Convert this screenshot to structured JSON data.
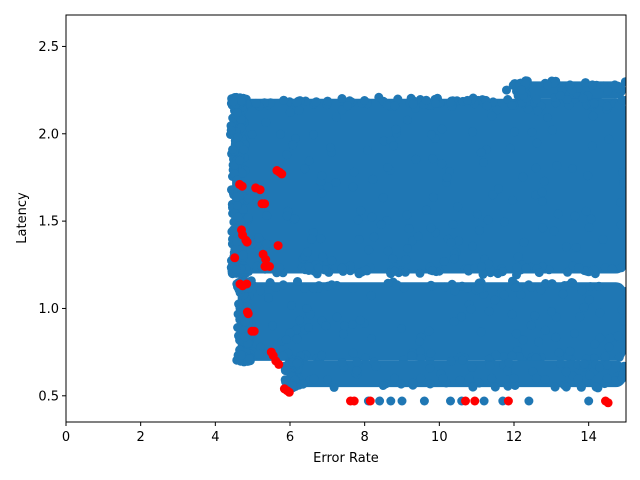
{
  "chart_data": {
    "type": "scatter",
    "title": "",
    "xlabel": "Error Rate",
    "ylabel": "Latency",
    "xlim": [
      0,
      15
    ],
    "ylim": [
      0.35,
      2.68
    ],
    "xticks": [
      "0",
      "2",
      "4",
      "6",
      "8",
      "10",
      "12",
      "14"
    ],
    "yticks": [
      "0.5",
      "1.0",
      "1.5",
      "2.0",
      "2.5"
    ],
    "grid": false,
    "legend": "none",
    "colors": {
      "normal": "#1f77b4",
      "anomaly": "#ff0000"
    },
    "series": [
      {
        "role": "normal",
        "bands": [
          {
            "x": [
              4.45,
              15.0
            ],
            "y": [
              1.2,
              2.2
            ]
          },
          {
            "x": [
              4.6,
              15.0
            ],
            "y": [
              0.7,
              1.15
            ]
          },
          {
            "x": [
              5.9,
              15.0
            ],
            "y": [
              0.55,
              0.7
            ]
          },
          {
            "x": [
              12.0,
              15.0
            ],
            "y": [
              2.2,
              2.3
            ]
          }
        ],
        "sparse": [
          [
            8.1,
            0.47
          ],
          [
            8.4,
            0.47
          ],
          [
            8.7,
            0.47
          ],
          [
            9.0,
            0.47
          ],
          [
            9.6,
            0.47
          ],
          [
            10.3,
            0.47
          ],
          [
            10.6,
            0.47
          ],
          [
            11.2,
            0.47
          ],
          [
            11.7,
            0.47
          ],
          [
            12.4,
            0.47
          ],
          [
            13.1,
            0.55
          ],
          [
            13.4,
            0.55
          ],
          [
            13.8,
            0.55
          ],
          [
            14.2,
            0.55
          ],
          [
            14.5,
            0.6
          ],
          [
            8.8,
            0.6
          ],
          [
            9.5,
            0.6
          ],
          [
            10.1,
            0.6
          ],
          [
            10.8,
            0.6
          ],
          [
            11.4,
            0.6
          ],
          [
            12.0,
            0.6
          ],
          [
            12.6,
            0.6
          ],
          [
            14.0,
            0.47
          ],
          [
            11.5,
            0.55
          ],
          [
            10.9,
            0.55
          ],
          [
            12.9,
            2.28
          ],
          [
            13.5,
            2.28
          ],
          [
            14.1,
            2.28
          ],
          [
            14.7,
            2.28
          ],
          [
            12.2,
            2.25
          ],
          [
            11.8,
            2.25
          ],
          [
            14.9,
            0.6
          ]
        ]
      },
      {
        "role": "anomaly",
        "points": [
          [
            4.65,
            1.71
          ],
          [
            4.72,
            1.7
          ],
          [
            5.08,
            1.69
          ],
          [
            5.2,
            1.68
          ],
          [
            5.25,
            1.6
          ],
          [
            5.32,
            1.6
          ],
          [
            5.65,
            1.79
          ],
          [
            5.72,
            1.78
          ],
          [
            5.78,
            1.77
          ],
          [
            4.7,
            1.45
          ],
          [
            4.73,
            1.42
          ],
          [
            4.82,
            1.39
          ],
          [
            4.85,
            1.38
          ],
          [
            4.52,
            1.29
          ],
          [
            5.28,
            1.31
          ],
          [
            5.35,
            1.28
          ],
          [
            5.33,
            1.24
          ],
          [
            5.45,
            1.24
          ],
          [
            5.68,
            1.36
          ],
          [
            4.66,
            1.14
          ],
          [
            4.73,
            1.13
          ],
          [
            4.84,
            1.14
          ],
          [
            4.86,
            0.98
          ],
          [
            4.88,
            0.97
          ],
          [
            4.98,
            0.87
          ],
          [
            5.04,
            0.87
          ],
          [
            5.5,
            0.75
          ],
          [
            5.55,
            0.73
          ],
          [
            5.62,
            0.7
          ],
          [
            5.7,
            0.68
          ],
          [
            5.85,
            0.54
          ],
          [
            5.92,
            0.53
          ],
          [
            5.98,
            0.52
          ],
          [
            7.62,
            0.47
          ],
          [
            7.72,
            0.47
          ],
          [
            8.15,
            0.47
          ],
          [
            10.7,
            0.47
          ],
          [
            10.95,
            0.47
          ],
          [
            11.85,
            0.47
          ],
          [
            14.45,
            0.47
          ],
          [
            14.52,
            0.46
          ]
        ]
      }
    ]
  }
}
